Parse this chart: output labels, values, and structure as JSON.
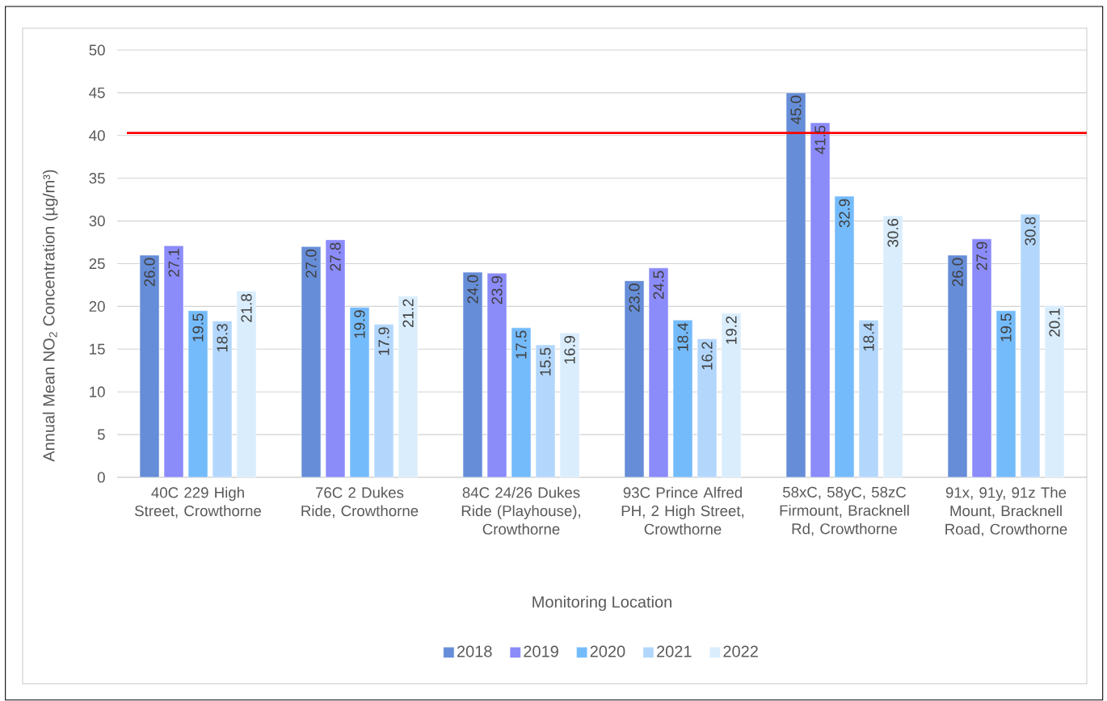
{
  "chart_data": {
    "type": "bar",
    "xlabel": "Monitoring Location",
    "ylabel": "Annual Mean NO$_{2}$ Concentration (µg/m³)",
    "categories": [
      "40C 229 High Street, Crowthorne",
      "76C 2 Dukes Ride, Crowthorne",
      "84C 24/26 Dukes Ride (Playhouse), Crowthorne",
      "93C Prince Alfred PH, 2 High Street, Crowthorne",
      "58xC, 58yC, 58zC Firmount, Bracknell Rd, Crowthorne",
      "91x, 91y, 91z The Mount, Bracknell Road, Crowthorne"
    ],
    "series": [
      {
        "name": "2018",
        "color": "#668dd8",
        "values": [
          26.0,
          27.0,
          24.0,
          23.0,
          45.0,
          26.0
        ],
        "value_labels": [
          "26.0",
          "27.0",
          "24.0",
          "23.0",
          "45.0",
          "26.0"
        ]
      },
      {
        "name": "2019",
        "color": "#8b8bfa",
        "values": [
          27.1,
          27.8,
          23.9,
          24.5,
          41.5,
          27.9
        ],
        "value_labels": [
          "27.1",
          "27.8",
          "23.9",
          "24.5",
          "41.5",
          "27.9"
        ]
      },
      {
        "name": "2020",
        "color": "#74bbfb",
        "values": [
          19.5,
          19.9,
          17.5,
          18.4,
          32.9,
          19.5
        ],
        "value_labels": [
          "19.5",
          "19.9",
          "17.5",
          "18.4",
          "32.9",
          "19.5"
        ]
      },
      {
        "name": "2021",
        "color": "#b3d7fc",
        "values": [
          18.3,
          17.9,
          15.5,
          16.2,
          18.4,
          30.8
        ],
        "value_labels": [
          "18.3",
          "17.9",
          "15.5",
          "16.2",
          "18.4",
          "30.8"
        ]
      },
      {
        "name": "2022",
        "color": "#d9edfd",
        "values": [
          21.8,
          21.2,
          16.9,
          19.2,
          30.6,
          20.1
        ],
        "value_labels": [
          "21.8",
          "21.2",
          "16.9",
          "19.2",
          "30.6",
          "20.1"
        ]
      }
    ],
    "ylim": [
      0,
      50
    ],
    "yticks": [
      0,
      5,
      10,
      15,
      20,
      25,
      30,
      35,
      40,
      45,
      50
    ],
    "ref_lines": [
      {
        "axis": "y",
        "value": 40.3,
        "color": "#ff0000"
      }
    ],
    "grid": "y",
    "legend": "bottom"
  }
}
